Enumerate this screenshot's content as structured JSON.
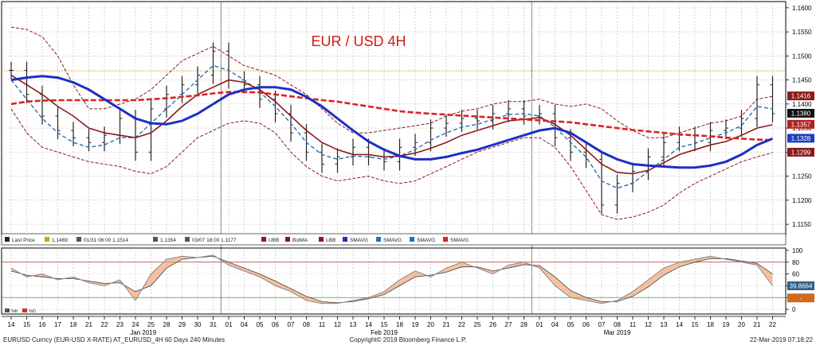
{
  "chart_data": {
    "type": "line",
    "title": "EUR / USD 4H",
    "price_axis": {
      "ticks": [
        "1.1600",
        "1.1550",
        "1.1500",
        "1.1450",
        "1.1400",
        "1.1350",
        "1.1300",
        "1.1250",
        "1.1200",
        "1.1150"
      ],
      "range": [
        1.1127,
        1.1613
      ]
    },
    "osc_axis": {
      "ticks": [
        "100",
        "80",
        "60",
        "40",
        "20",
        "0"
      ],
      "range": [
        -8,
        104
      ]
    },
    "dates": [
      "14",
      "15",
      "16",
      "17",
      "18",
      "21",
      "22",
      "23",
      "24",
      "25",
      "28",
      "29",
      "30",
      "31",
      "01",
      "04",
      "05",
      "06",
      "07",
      "08",
      "11",
      "12",
      "13",
      "14",
      "15",
      "18",
      "19",
      "20",
      "21",
      "22",
      "25",
      "26",
      "27",
      "28",
      "01",
      "04",
      "05",
      "06",
      "07",
      "08",
      "11",
      "12",
      "13",
      "14",
      "15",
      "18",
      "19",
      "20",
      "21",
      "22"
    ],
    "months": [
      {
        "label": "Jan 2019",
        "index": 8.5
      },
      {
        "label": "Feb 2019",
        "index": 24
      },
      {
        "label": "Mar 2019",
        "index": 39
      }
    ],
    "month_breaks": [
      13.5,
      33.5
    ],
    "horizontal_line": 1.1469,
    "price_badges": [
      {
        "text": "1.1416",
        "value": 1.1416,
        "color": "#8b1a1a"
      },
      {
        "text": "1.1380",
        "value": 1.138,
        "color": "#111111"
      },
      {
        "text": "1.1357",
        "value": 1.1357,
        "color": "#b22222"
      },
      {
        "text": "1.1328",
        "value": 1.1328,
        "color": "#1e3fbf"
      },
      {
        "text": "1.1299",
        "value": 1.1299,
        "color": "#8b1a1a"
      }
    ],
    "osc_badges": [
      {
        "text": "39.8664",
        "value": 39.8664,
        "color": "#2d5f8a"
      },
      {
        "text": "-",
        "value": 22,
        "color": "#d2691e"
      }
    ],
    "osc_levels": [
      80,
      20
    ],
    "series": {
      "last_price": [
        1.147,
        1.142,
        1.1375,
        1.1345,
        1.133,
        1.132,
        1.1335,
        1.137,
        1.13,
        1.139,
        1.142,
        1.144,
        1.146,
        1.151,
        1.145,
        1.144,
        1.141,
        1.138,
        1.134,
        1.13,
        1.1275,
        1.129,
        1.131,
        1.129,
        1.128,
        1.131,
        1.132,
        1.135,
        1.136,
        1.137,
        1.1365,
        1.138,
        1.139,
        1.1375,
        1.138,
        1.133,
        1.13,
        1.1285,
        1.119,
        1.1235,
        1.126,
        1.129,
        1.132,
        1.1335,
        1.132,
        1.1345,
        1.135,
        1.137,
        1.144,
        1.138
      ],
      "bollinger_ma": [
        1.146,
        1.144,
        1.142,
        1.1395,
        1.1375,
        1.135,
        1.134,
        1.1335,
        1.133,
        1.134,
        1.1365,
        1.1395,
        1.142,
        1.1435,
        1.145,
        1.1445,
        1.143,
        1.1405,
        1.1375,
        1.1345,
        1.132,
        1.1305,
        1.1295,
        1.1295,
        1.129,
        1.1292,
        1.1298,
        1.1308,
        1.132,
        1.1335,
        1.1345,
        1.1355,
        1.1365,
        1.1368,
        1.1372,
        1.1358,
        1.1335,
        1.1305,
        1.1275,
        1.1258,
        1.1255,
        1.1262,
        1.1278,
        1.1295,
        1.1305,
        1.1315,
        1.1322,
        1.1335,
        1.135,
        1.1357
      ],
      "upper_band": [
        1.156,
        1.1555,
        1.154,
        1.15,
        1.144,
        1.139,
        1.139,
        1.14,
        1.141,
        1.143,
        1.146,
        1.149,
        1.1505,
        1.152,
        1.15,
        1.148,
        1.147,
        1.146,
        1.144,
        1.142,
        1.139,
        1.136,
        1.134,
        1.134,
        1.1345,
        1.135,
        1.1355,
        1.136,
        1.1375,
        1.1385,
        1.139,
        1.14,
        1.1405,
        1.1405,
        1.141,
        1.14,
        1.1395,
        1.14,
        1.139,
        1.1365,
        1.1345,
        1.133,
        1.133,
        1.134,
        1.135,
        1.136,
        1.1365,
        1.1375,
        1.141,
        1.1416
      ],
      "lower_band": [
        1.139,
        1.134,
        1.131,
        1.13,
        1.129,
        1.128,
        1.1275,
        1.127,
        1.126,
        1.1255,
        1.127,
        1.13,
        1.133,
        1.1345,
        1.136,
        1.1365,
        1.136,
        1.134,
        1.13,
        1.127,
        1.125,
        1.124,
        1.1245,
        1.125,
        1.124,
        1.1235,
        1.124,
        1.1255,
        1.127,
        1.1285,
        1.13,
        1.131,
        1.132,
        1.133,
        1.133,
        1.131,
        1.127,
        1.122,
        1.117,
        1.116,
        1.1165,
        1.1175,
        1.119,
        1.1215,
        1.1235,
        1.125,
        1.1265,
        1.128,
        1.129,
        1.1299
      ],
      "smavg_red": [
        1.14,
        1.1405,
        1.1407,
        1.1408,
        1.1408,
        1.1408,
        1.1408,
        1.1408,
        1.1408,
        1.141,
        1.1412,
        1.1415,
        1.1418,
        1.1422,
        1.1425,
        1.1425,
        1.1424,
        1.142,
        1.1416,
        1.1412,
        1.1408,
        1.1405,
        1.14,
        1.1395,
        1.139,
        1.1385,
        1.1382,
        1.138,
        1.1378,
        1.1376,
        1.1374,
        1.1372,
        1.137,
        1.1368,
        1.1366,
        1.1364,
        1.1362,
        1.1358,
        1.1354,
        1.135,
        1.1346,
        1.1343,
        1.134,
        1.1337,
        1.1335,
        1.1333,
        1.133,
        1.1328,
        1.1326,
        1.1325
      ],
      "smavg_blue": [
        1.145,
        1.1455,
        1.1458,
        1.1455,
        1.1445,
        1.143,
        1.141,
        1.139,
        1.137,
        1.136,
        1.1358,
        1.1365,
        1.138,
        1.14,
        1.142,
        1.143,
        1.1435,
        1.1435,
        1.143,
        1.1415,
        1.1395,
        1.137,
        1.1345,
        1.1322,
        1.1305,
        1.1292,
        1.1285,
        1.1285,
        1.129,
        1.1298,
        1.1305,
        1.1315,
        1.1325,
        1.1335,
        1.1345,
        1.135,
        1.134,
        1.132,
        1.13,
        1.1285,
        1.1275,
        1.1272,
        1.127,
        1.1268,
        1.1268,
        1.1272,
        1.128,
        1.1295,
        1.1315,
        1.1328
      ],
      "smavg_dashed": [
        1.145,
        1.141,
        1.137,
        1.134,
        1.132,
        1.131,
        1.1315,
        1.133,
        1.133,
        1.136,
        1.139,
        1.142,
        1.145,
        1.148,
        1.147,
        1.145,
        1.1425,
        1.1395,
        1.136,
        1.132,
        1.1295,
        1.1285,
        1.1292,
        1.129,
        1.1285,
        1.1292,
        1.1305,
        1.1325,
        1.134,
        1.1352,
        1.1358,
        1.1368,
        1.1378,
        1.138,
        1.1375,
        1.1352,
        1.132,
        1.129,
        1.124,
        1.1225,
        1.1235,
        1.126,
        1.1285,
        1.131,
        1.1318,
        1.133,
        1.134,
        1.1355,
        1.1395,
        1.139
      ],
      "osc_k": [
        70,
        55,
        60,
        50,
        55,
        45,
        40,
        50,
        15,
        60,
        85,
        90,
        88,
        92,
        75,
        65,
        55,
        40,
        30,
        15,
        10,
        10,
        15,
        20,
        30,
        50,
        65,
        55,
        70,
        80,
        70,
        60,
        75,
        80,
        70,
        40,
        20,
        15,
        10,
        15,
        30,
        50,
        70,
        80,
        85,
        90,
        85,
        80,
        75,
        40
      ],
      "osc_d": [
        65,
        58,
        55,
        52,
        52,
        48,
        44,
        45,
        30,
        40,
        70,
        85,
        88,
        90,
        80,
        70,
        60,
        48,
        35,
        22,
        13,
        11,
        13,
        18,
        25,
        40,
        55,
        58,
        63,
        72,
        72,
        65,
        70,
        76,
        74,
        55,
        32,
        20,
        13,
        13,
        22,
        38,
        58,
        72,
        80,
        86,
        86,
        82,
        78,
        60
      ]
    }
  },
  "legend": {
    "last_price": "Last Price",
    "h_line": "1.1469",
    "high": "01/31 06:00 1.1514",
    "mid": "1.1354",
    "low": "03/07 18:00 1.1177",
    "ubb": "UBB",
    "bolma": "BolMA",
    "lbb": "LBB",
    "smavg1": "SMAVG",
    "smavg2": "SMAVG",
    "smavg3": "SMAVG",
    "smavg4": "SMAVG"
  },
  "osc_legend": {
    "k": "%K",
    "d": "%D"
  },
  "footer": {
    "left": "EURUSD Curncy (EUR-USD X-RATE) AT_EURUSD_4H 60 Days 240 Minutes",
    "center": "Copyright© 2019 Bloomberg Finance L.P.",
    "right": "22-Mar-2019 07:18:22"
  },
  "colors": {
    "price": "#222222",
    "bollinger_band": "#8b1a1a",
    "bollinger_ma": "#8b1a1a",
    "smavg_red": "#dd2222",
    "smavg_blue": "#1c2fc4",
    "smavg_dashed": "#2a6fb0",
    "h_line": "#d4a017",
    "osc_k": "#888888",
    "osc_fill": "#f0a070"
  }
}
